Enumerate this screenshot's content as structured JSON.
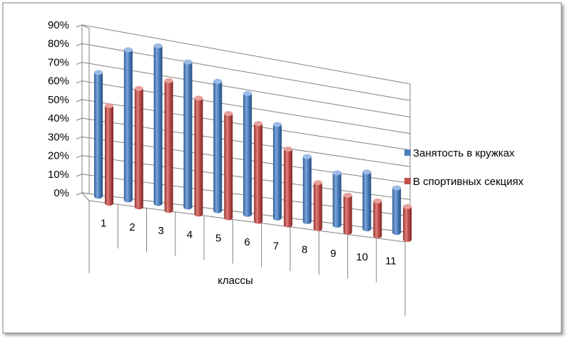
{
  "chart_data": {
    "type": "bar",
    "categories": [
      "1",
      "2",
      "3",
      "4",
      "5",
      "6",
      "7",
      "8",
      "9",
      "10",
      "11"
    ],
    "series": [
      {
        "name": "Занятость в кружках",
        "values": [
          66,
          81,
          86,
          80,
          72,
          68,
          53,
          37,
          30,
          33,
          26
        ],
        "color": "#4f81bd"
      },
      {
        "name": "В спортивных секциях",
        "values": [
          52,
          64,
          71,
          64,
          58,
          55,
          43,
          26,
          21,
          20,
          19
        ],
        "color": "#c0504d"
      }
    ],
    "xlabel": "классы",
    "ylim": [
      0,
      90
    ],
    "yticks": [
      "0%",
      "10%",
      "20%",
      "30%",
      "40%",
      "50%",
      "60%",
      "70%",
      "80%",
      "90%"
    ],
    "legend_position": "right",
    "grid": true,
    "style": "3d-cylinder"
  }
}
